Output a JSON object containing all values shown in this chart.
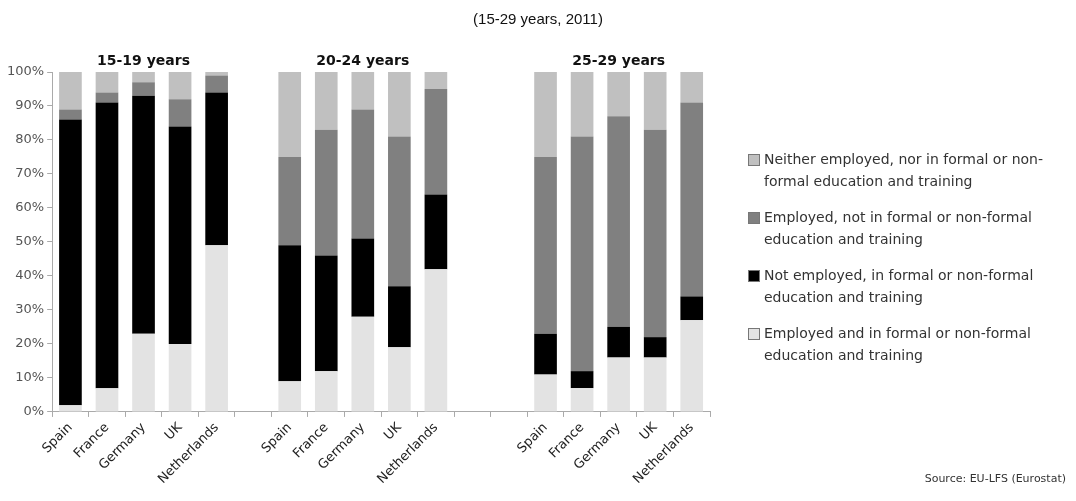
{
  "chart_data": {
    "type": "bar",
    "title": "(15-29 years, 2011)",
    "categories": [
      "Spain",
      "France",
      "Germany",
      "UK",
      "Netherlands",
      null,
      "Spain",
      "France",
      "Germany",
      "UK",
      "Netherlands",
      null,
      null,
      "Spain",
      "France",
      "Germany",
      "UK",
      "Netherlands"
    ],
    "series": [
      {
        "name": "Employed and in formal or non-formal education and training",
        "color": "#e3e3e3",
        "values": [
          2,
          7,
          23,
          20,
          49,
          null,
          9,
          12,
          28,
          19,
          42,
          null,
          null,
          11,
          7,
          16,
          16,
          27
        ]
      },
      {
        "name": "Not employed, in formal or non-formal education and training",
        "color": "#000000",
        "values": [
          84,
          84,
          70,
          64,
          45,
          null,
          40,
          34,
          23,
          18,
          22,
          null,
          null,
          12,
          5,
          9,
          6,
          7
        ]
      },
      {
        "name": "Employed, not in formal or non-formal education and training",
        "color": "#808080",
        "values": [
          3,
          3,
          4,
          8,
          5,
          null,
          26,
          37,
          38,
          44,
          31,
          null,
          null,
          52,
          69,
          62,
          61,
          57
        ]
      },
      {
        "name": "Neither employed, nor in formal or non-formal education and training",
        "color": "#c0c0c0",
        "values": [
          11,
          6,
          3,
          8,
          1,
          null,
          25,
          17,
          11,
          19,
          5,
          null,
          null,
          25,
          19,
          13,
          17,
          9
        ]
      }
    ],
    "stacked": true,
    "ylim": [
      0,
      100
    ],
    "yticks": [
      {
        "value": 0,
        "label": "0%"
      },
      {
        "value": 10,
        "label": "10%"
      },
      {
        "value": 20,
        "label": "20%"
      },
      {
        "value": 30,
        "label": "30%"
      },
      {
        "value": 40,
        "label": "40%"
      },
      {
        "value": 50,
        "label": "50%"
      },
      {
        "value": 60,
        "label": "60%"
      },
      {
        "value": 70,
        "label": "70%"
      },
      {
        "value": 80,
        "label": "80%"
      },
      {
        "value": 90,
        "label": "90%"
      },
      {
        "value": 100,
        "label": "100%"
      }
    ],
    "annotations": [
      "15-19 years",
      "20-24 years",
      "25-29 years",
      "Source: EU-LFS (Eurostat)"
    ],
    "legend": "right",
    "grid": false
  }
}
